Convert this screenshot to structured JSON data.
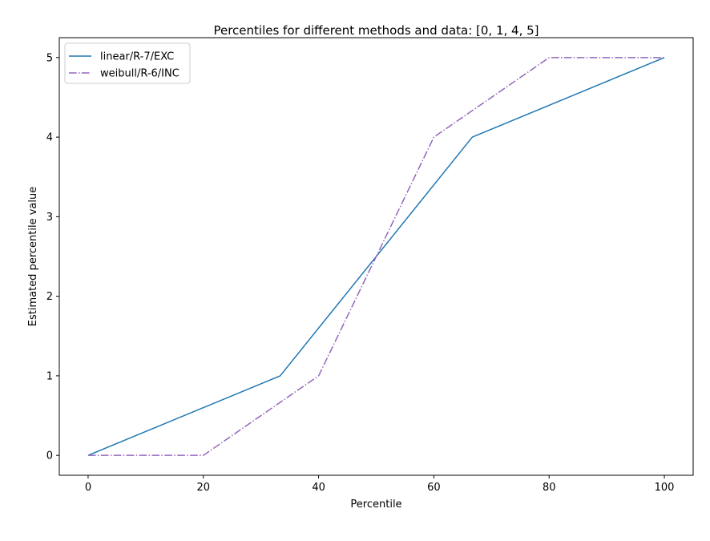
{
  "chart_data": {
    "type": "line",
    "title": "Percentiles for different methods and data: [0, 1, 4, 5]",
    "xlabel": "Percentile",
    "ylabel": "Estimated percentile value",
    "xlim": [
      -5,
      105
    ],
    "ylim": [
      -0.25,
      5.25
    ],
    "xticks": [
      0,
      20,
      40,
      60,
      80,
      100
    ],
    "yticks": [
      0,
      1,
      2,
      3,
      4,
      5
    ],
    "grid": false,
    "legend_position": "top-left",
    "series": [
      {
        "name": "linear/R-7/EXC",
        "color": "#1f77b4",
        "linestyle": "solid",
        "x": [
          0,
          33.33,
          66.67,
          100
        ],
        "y": [
          0,
          1,
          4,
          5
        ]
      },
      {
        "name": "weibull/R-6/INC",
        "color": "#9467bd",
        "linestyle": "dashdot",
        "x": [
          0,
          20,
          40,
          60,
          80,
          100
        ],
        "y": [
          0,
          0,
          1,
          4,
          5,
          5
        ]
      }
    ]
  }
}
